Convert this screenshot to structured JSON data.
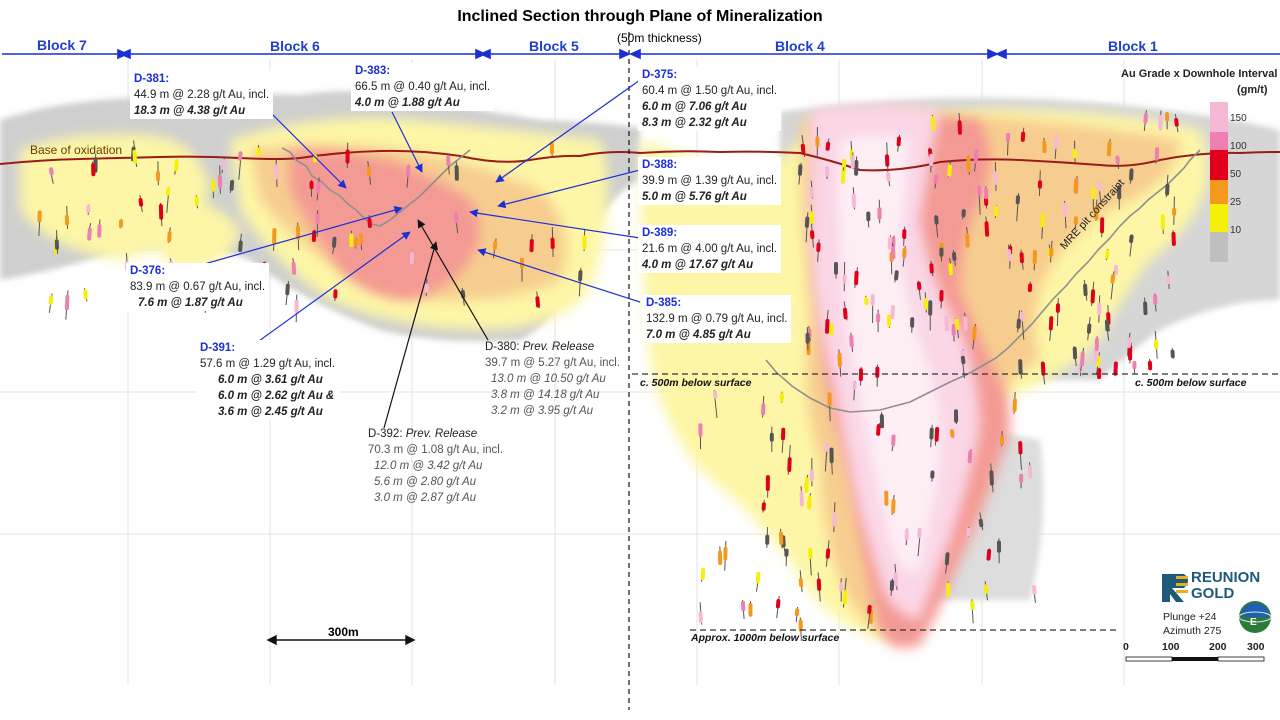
{
  "title": "Inclined Section through Plane of Mineralization",
  "subtitle": "(50m thickness)",
  "blocks": [
    "Block 7",
    "Block 6",
    "Block 5",
    "Block 4",
    "Block 1"
  ],
  "base_of_oxidation": "Base of oxidation",
  "pit_constraint": "MRE pit constraint",
  "scale_label": "300m",
  "depth_labels": {
    "d500_left": "c. 500m  below surface",
    "d500_right": "c. 500m  below surface",
    "d1000": "Approx. 1000m  below surface"
  },
  "legend": {
    "title_line1": "Au Grade x Downhole Interval",
    "title_line2": "(gm/t)",
    "ticks": [
      "150",
      "100",
      "50",
      "25",
      "10"
    ],
    "colors": [
      "#f7b8d6",
      "#ef7fb0",
      "#e0001b",
      "#f39a1e",
      "#f5ef0a",
      "#bfbfbf"
    ]
  },
  "logo": {
    "line1": "REUNION",
    "line2": "GOLD"
  },
  "orientation": {
    "plunge": "Plunge +24",
    "azimuth": "Azimuth 275",
    "compass": "E"
  },
  "scalebar": [
    "0",
    "100",
    "200",
    "300"
  ],
  "annotations": {
    "d381": {
      "id": "D-381:",
      "lines": [
        "44.9 m @ 2.28 g/t Au, incl."
      ],
      "bold": [
        "18.3 m @ 4.38 g/t Au"
      ]
    },
    "d383": {
      "id": "D-383:",
      "lines": [
        "66.5 m @ 0.40 g/t Au, incl."
      ],
      "bold": [
        "4.0 m @ 1.88 g/t Au"
      ]
    },
    "d375": {
      "id": "D-375:",
      "lines": [
        "60.4 m @ 1.50 g/t Au, incl."
      ],
      "bold": [
        "6.0 m @ 7.06 g/t Au",
        "8.3 m @ 2.32 g/t Au"
      ]
    },
    "d388": {
      "id": "D-388:",
      "lines": [
        "39.9 m @ 1.39 g/t Au, incl."
      ],
      "bold": [
        "5.0 m @ 5.76 g/t Au"
      ]
    },
    "d389": {
      "id": "D-389:",
      "lines": [
        "21.6 m @ 4.00 g/t Au, incl."
      ],
      "bold": [
        "4.0 m @ 17.67 g/t Au"
      ]
    },
    "d385": {
      "id": "D-385:",
      "lines": [
        "132.9 m @ 0.79 g/t Au, incl."
      ],
      "bold": [
        "7.0 m @ 4.85 g/t Au"
      ]
    },
    "d376": {
      "id": "D-376:",
      "lines": [
        "83.9 m @ 0.67 g/t Au, incl."
      ],
      "bold": [
        "7.6 m @ 1.87 g/t Au"
      ]
    },
    "d391": {
      "id": "D-391:",
      "lines": [
        "57.6 m @ 1.29 g/t Au, incl."
      ],
      "bold": [
        "6.0 m @ 3.61 g/t Au",
        "6.0 m @ 2.62 g/t Au &",
        "3.6 m @ 2.45 g/t Au"
      ]
    },
    "d380": {
      "id": "D-380:",
      "release": "Prev. Release",
      "lines": [
        "39.7 m @ 5.27 g/t Au, incl."
      ],
      "bold": [
        "13.0 m @ 10.50 g/t Au",
        "3.8 m @ 14.18 g/t Au",
        "3.2 m @ 3.95 g/t Au"
      ]
    },
    "d392": {
      "id": "D-392:",
      "release": "Prev. Release",
      "lines": [
        "70.3 m @ 1.08 g/t Au, incl."
      ],
      "bold": [
        "12.0 m @ 3.42 g/t Au",
        "5.6 m @ 2.80 g/t Au",
        "3.0 m @ 2.87 g/t Au"
      ]
    }
  }
}
